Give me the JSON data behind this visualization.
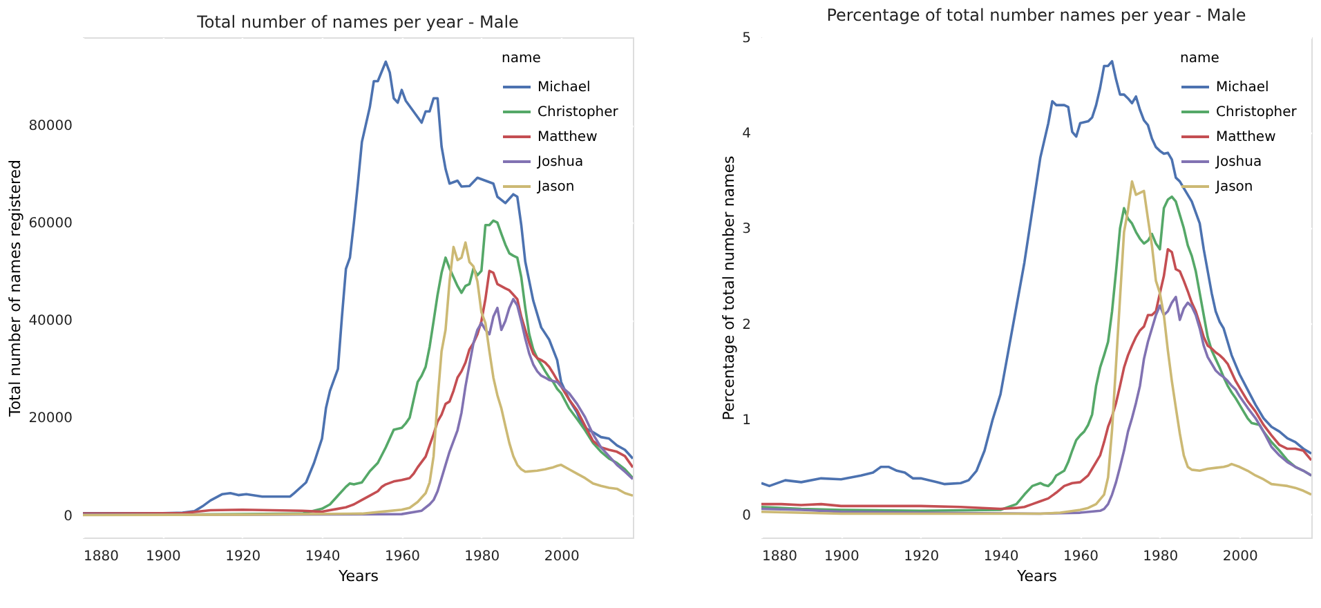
{
  "chart_data": [
    {
      "type": "line",
      "title": "Total number of names per year - Male",
      "xlabel": "Years",
      "ylabel": "Total number of names registered",
      "legend_title": "name",
      "legend": "top right",
      "grid": true,
      "marker": "none",
      "line_style": "solid",
      "xlim": [
        1880,
        2018
      ],
      "xticks": [
        1880,
        1900,
        1920,
        1940,
        1960,
        1980,
        2000
      ],
      "ylim": [
        -4600,
        98000
      ],
      "yticks": [
        0,
        20000,
        40000,
        60000,
        80000
      ],
      "series": [
        {
          "name": "Michael",
          "color": "#4c72b0",
          "x": [
            1880,
            1890,
            1900,
            1905,
            1908,
            1910,
            1912,
            1915,
            1917,
            1919,
            1921,
            1925,
            1932,
            1933,
            1936,
            1938,
            1940,
            1941,
            1942,
            1944,
            1945,
            1946,
            1947,
            1948,
            1949,
            1950,
            1952,
            1953,
            1954,
            1956,
            1957,
            1958,
            1959,
            1960,
            1961,
            1965,
            1966,
            1967,
            1968,
            1969,
            1970,
            1971,
            1972,
            1974,
            1975,
            1977,
            1979,
            1983,
            1984,
            1986,
            1988,
            1989,
            1990,
            1991,
            1993,
            1995,
            1997,
            1999,
            2000,
            2002,
            2004,
            2005,
            2006,
            2008,
            2010,
            2012,
            2014,
            2016,
            2018
          ],
          "values": [
            400,
            400,
            400,
            500,
            800,
            1800,
            3000,
            4300,
            4500,
            4100,
            4300,
            3800,
            3800,
            4500,
            6700,
            10700,
            15700,
            22000,
            25500,
            30000,
            40700,
            50500,
            52800,
            60000,
            68000,
            76500,
            83700,
            89000,
            89000,
            93000,
            90800,
            85500,
            84600,
            87200,
            85000,
            80500,
            82800,
            82800,
            85500,
            85500,
            75600,
            71000,
            68000,
            68600,
            67400,
            67500,
            69200,
            68000,
            65300,
            64000,
            65800,
            65300,
            59500,
            52000,
            44000,
            38500,
            36000,
            31800,
            27300,
            23700,
            21000,
            19000,
            17900,
            17000,
            16000,
            15700,
            14300,
            13400,
            11600
          ]
        },
        {
          "name": "Christopher",
          "color": "#55a868",
          "x": [
            1880,
            1900,
            1920,
            1935,
            1940,
            1942,
            1944,
            1946,
            1947,
            1948,
            1950,
            1952,
            1954,
            1956,
            1957,
            1958,
            1960,
            1961,
            1962,
            1963,
            1964,
            1965,
            1966,
            1967,
            1968,
            1969,
            1970,
            1971,
            1972,
            1973,
            1974,
            1975,
            1976,
            1977,
            1978,
            1979,
            1980,
            1981,
            1982,
            1983,
            1984,
            1985,
            1986,
            1987,
            1988,
            1989,
            1990,
            1991,
            1992,
            1993,
            1994,
            1995,
            1996,
            1997,
            1998,
            1999,
            2000,
            2002,
            2004,
            2006,
            2008,
            2010,
            2012,
            2014,
            2016,
            2018
          ],
          "values": [
            100,
            100,
            200,
            300,
            1300,
            2200,
            4000,
            5800,
            6500,
            6300,
            6700,
            9000,
            10700,
            13900,
            15700,
            17500,
            17900,
            18800,
            20000,
            23700,
            27300,
            28600,
            30400,
            34500,
            39800,
            45200,
            49700,
            52800,
            50600,
            48800,
            47000,
            45600,
            47000,
            47400,
            50600,
            49200,
            50100,
            59500,
            59500,
            60400,
            60000,
            57700,
            55500,
            53700,
            53200,
            52800,
            48800,
            42500,
            37100,
            34000,
            32200,
            30900,
            29500,
            28200,
            27300,
            25900,
            25000,
            21900,
            19700,
            17400,
            14800,
            13000,
            11600,
            10700,
            9400,
            7600
          ]
        },
        {
          "name": "Matthew",
          "color": "#c44e52",
          "x": [
            1880,
            1905,
            1912,
            1920,
            1935,
            1940,
            1944,
            1946,
            1948,
            1950,
            1952,
            1954,
            1955,
            1956,
            1958,
            1960,
            1962,
            1963,
            1964,
            1966,
            1967,
            1968,
            1969,
            1970,
            1971,
            1972,
            1973,
            1974,
            1975,
            1976,
            1977,
            1978,
            1979,
            1980,
            1981,
            1982,
            1983,
            1984,
            1986,
            1987,
            1988,
            1989,
            1990,
            1991,
            1992,
            1993,
            1994,
            1995,
            1996,
            1997,
            1998,
            1999,
            2000,
            2002,
            2004,
            2006,
            2008,
            2010,
            2012,
            2014,
            2016,
            2018
          ],
          "values": [
            300,
            400,
            1000,
            1100,
            900,
            700,
            1300,
            1600,
            2200,
            3100,
            4000,
            4900,
            5800,
            6300,
            6900,
            7200,
            7600,
            8500,
            9800,
            12000,
            14300,
            16600,
            19200,
            20600,
            22800,
            23300,
            25500,
            28200,
            29500,
            31300,
            34000,
            35300,
            37100,
            39800,
            44300,
            50100,
            49700,
            47400,
            46500,
            46100,
            45200,
            44300,
            40700,
            38000,
            35300,
            33100,
            32200,
            31800,
            31300,
            30400,
            29100,
            27700,
            26400,
            23700,
            21500,
            18300,
            15200,
            13900,
            13400,
            13000,
            12100,
            9800
          ]
        },
        {
          "name": "Joshua",
          "color": "#8172b2",
          "x": [
            1880,
            1920,
            1960,
            1965,
            1967,
            1968,
            1969,
            1970,
            1971,
            1972,
            1973,
            1974,
            1975,
            1976,
            1977,
            1978,
            1979,
            1980,
            1981,
            1982,
            1983,
            1984,
            1985,
            1986,
            1987,
            1988,
            1989,
            1990,
            1991,
            1992,
            1993,
            1994,
            1995,
            1996,
            1997,
            1999,
            2000,
            2002,
            2004,
            2006,
            2008,
            2010,
            2012,
            2014,
            2016,
            2018
          ],
          "values": [
            100,
            100,
            200,
            900,
            2200,
            3100,
            4900,
            7600,
            10300,
            13000,
            15200,
            17400,
            21000,
            26400,
            30900,
            35300,
            38000,
            39400,
            38000,
            37100,
            40700,
            42500,
            38000,
            39800,
            42500,
            44300,
            43000,
            39800,
            36200,
            33100,
            30900,
            29500,
            28600,
            28200,
            27700,
            27300,
            26400,
            25000,
            22800,
            20100,
            16600,
            13900,
            12100,
            10300,
            8900,
            7400
          ]
        },
        {
          "name": "Jason",
          "color": "#ccb974",
          "x": [
            1880,
            1920,
            1950,
            1955,
            1960,
            1962,
            1964,
            1966,
            1967,
            1968,
            1969,
            1970,
            1971,
            1972,
            1973,
            1974,
            1975,
            1976,
            1977,
            1978,
            1979,
            1980,
            1981,
            1982,
            1983,
            1984,
            1985,
            1986,
            1987,
            1988,
            1989,
            1990,
            1991,
            1994,
            1996,
            1997,
            1998,
            1999,
            2000,
            2002,
            2004,
            2006,
            2008,
            2010,
            2012,
            2014,
            2016,
            2018
          ],
          "values": [
            0,
            100,
            300,
            700,
            1100,
            1500,
            2700,
            4500,
            6700,
            12100,
            23700,
            33600,
            38000,
            47900,
            55000,
            52300,
            52800,
            55900,
            51900,
            51000,
            47900,
            41600,
            39400,
            33600,
            28200,
            24600,
            21900,
            18300,
            14800,
            12100,
            10300,
            9400,
            8900,
            9100,
            9400,
            9600,
            9800,
            10100,
            10300,
            9400,
            8500,
            7600,
            6500,
            6000,
            5600,
            5400,
            4500,
            4000
          ]
        }
      ]
    },
    {
      "type": "line",
      "title": "Percentage of total number names per year - Male",
      "xlabel": "Years",
      "ylabel": "Percentage of total number names",
      "legend_title": "name",
      "legend": "top right",
      "grid": true,
      "marker": "none",
      "line_style": "solid",
      "xlim": [
        1880,
        2018
      ],
      "xticks": [
        1880,
        1900,
        1920,
        1940,
        1960,
        1980,
        2000
      ],
      "ylim": [
        -0.24,
        5
      ],
      "yticks": [
        0,
        1,
        2,
        3,
        4,
        5
      ],
      "series": [
        {
          "name": "Michael",
          "color": "#4c72b0",
          "x": [
            1880,
            1882,
            1886,
            1890,
            1895,
            1900,
            1905,
            1908,
            1910,
            1912,
            1914,
            1916,
            1918,
            1920,
            1924,
            1926,
            1930,
            1932,
            1934,
            1936,
            1938,
            1940,
            1942,
            1944,
            1946,
            1948,
            1950,
            1952,
            1953,
            1954,
            1956,
            1957,
            1958,
            1959,
            1960,
            1962,
            1963,
            1964,
            1965,
            1966,
            1967,
            1968,
            1969,
            1970,
            1971,
            1972,
            1973,
            1974,
            1975,
            1976,
            1977,
            1978,
            1979,
            1980,
            1981,
            1982,
            1983,
            1984,
            1985,
            1986,
            1988,
            1990,
            1991,
            1992,
            1993,
            1994,
            1995,
            1996,
            1997,
            1998,
            2000,
            2002,
            2004,
            2006,
            2008,
            2010,
            2012,
            2014,
            2016,
            2018
          ],
          "values": [
            0.33,
            0.3,
            0.36,
            0.34,
            0.38,
            0.37,
            0.41,
            0.44,
            0.5,
            0.5,
            0.46,
            0.44,
            0.38,
            0.38,
            0.34,
            0.32,
            0.33,
            0.36,
            0.46,
            0.67,
            0.99,
            1.26,
            1.72,
            2.18,
            2.64,
            3.19,
            3.74,
            4.1,
            4.33,
            4.29,
            4.29,
            4.27,
            4.01,
            3.96,
            4.1,
            4.12,
            4.16,
            4.29,
            4.47,
            4.7,
            4.7,
            4.75,
            4.56,
            4.4,
            4.4,
            4.36,
            4.31,
            4.38,
            4.24,
            4.13,
            4.08,
            3.94,
            3.85,
            3.81,
            3.78,
            3.79,
            3.72,
            3.53,
            3.49,
            3.42,
            3.28,
            3.05,
            2.78,
            2.55,
            2.32,
            2.13,
            2.02,
            1.95,
            1.81,
            1.67,
            1.47,
            1.31,
            1.15,
            1.01,
            0.92,
            0.87,
            0.8,
            0.76,
            0.69,
            0.64
          ]
        },
        {
          "name": "Christopher",
          "color": "#55a868",
          "x": [
            1880,
            1890,
            1900,
            1920,
            1940,
            1944,
            1946,
            1948,
            1950,
            1951,
            1952,
            1953,
            1954,
            1956,
            1957,
            1958,
            1959,
            1960,
            1961,
            1962,
            1963,
            1964,
            1965,
            1966,
            1967,
            1968,
            1969,
            1970,
            1971,
            1972,
            1973,
            1974,
            1975,
            1976,
            1977,
            1978,
            1979,
            1980,
            1981,
            1982,
            1983,
            1984,
            1985,
            1986,
            1987,
            1988,
            1989,
            1990,
            1991,
            1992,
            1993,
            1994,
            1995,
            1996,
            1997,
            1998,
            1999,
            2000,
            2001,
            2002,
            2003,
            2005,
            2006,
            2008,
            2010,
            2012,
            2014,
            2016,
            2018
          ],
          "values": [
            0.08,
            0.06,
            0.05,
            0.04,
            0.05,
            0.11,
            0.21,
            0.3,
            0.33,
            0.31,
            0.3,
            0.34,
            0.41,
            0.46,
            0.55,
            0.67,
            0.78,
            0.83,
            0.87,
            0.94,
            1.05,
            1.35,
            1.54,
            1.67,
            1.81,
            2.13,
            2.55,
            3.0,
            3.21,
            3.1,
            3.05,
            2.96,
            2.89,
            2.84,
            2.87,
            2.94,
            2.84,
            2.78,
            3.21,
            3.3,
            3.33,
            3.28,
            3.14,
            3.0,
            2.82,
            2.71,
            2.55,
            2.32,
            2.09,
            1.86,
            1.72,
            1.63,
            1.54,
            1.44,
            1.35,
            1.28,
            1.22,
            1.15,
            1.08,
            1.01,
            0.96,
            0.94,
            0.87,
            0.76,
            0.67,
            0.57,
            0.5,
            0.46,
            0.41
          ]
        },
        {
          "name": "Matthew",
          "color": "#c44e52",
          "x": [
            1880,
            1885,
            1890,
            1895,
            1900,
            1910,
            1920,
            1930,
            1940,
            1944,
            1946,
            1948,
            1950,
            1952,
            1954,
            1956,
            1958,
            1960,
            1962,
            1963,
            1964,
            1965,
            1966,
            1967,
            1968,
            1969,
            1970,
            1971,
            1972,
            1973,
            1974,
            1975,
            1976,
            1977,
            1978,
            1979,
            1980,
            1981,
            1982,
            1983,
            1984,
            1985,
            1986,
            1987,
            1988,
            1989,
            1990,
            1991,
            1992,
            1993,
            1994,
            1995,
            1996,
            1997,
            1998,
            1999,
            2000,
            2002,
            2004,
            2006,
            2008,
            2010,
            2012,
            2014,
            2016,
            2018
          ],
          "values": [
            0.11,
            0.11,
            0.1,
            0.11,
            0.09,
            0.09,
            0.09,
            0.08,
            0.06,
            0.07,
            0.08,
            0.11,
            0.14,
            0.17,
            0.23,
            0.3,
            0.33,
            0.34,
            0.41,
            0.48,
            0.55,
            0.62,
            0.76,
            0.92,
            1.03,
            1.17,
            1.35,
            1.54,
            1.67,
            1.77,
            1.86,
            1.93,
            1.97,
            2.09,
            2.09,
            2.13,
            2.32,
            2.5,
            2.78,
            2.75,
            2.57,
            2.55,
            2.45,
            2.34,
            2.22,
            2.13,
            2.0,
            1.86,
            1.77,
            1.74,
            1.7,
            1.67,
            1.63,
            1.58,
            1.49,
            1.4,
            1.33,
            1.19,
            1.08,
            0.94,
            0.83,
            0.73,
            0.69,
            0.69,
            0.67,
            0.57
          ]
        },
        {
          "name": "Joshua",
          "color": "#8172b2",
          "x": [
            1880,
            1890,
            1900,
            1920,
            1950,
            1960,
            1965,
            1966,
            1967,
            1968,
            1969,
            1970,
            1971,
            1972,
            1973,
            1974,
            1975,
            1976,
            1977,
            1978,
            1979,
            1980,
            1981,
            1982,
            1983,
            1984,
            1985,
            1986,
            1987,
            1988,
            1989,
            1990,
            1991,
            1992,
            1993,
            1994,
            1995,
            1996,
            1997,
            1998,
            1999,
            2000,
            2002,
            2004,
            2006,
            2008,
            2010,
            2012,
            2014,
            2016,
            2018
          ],
          "values": [
            0.06,
            0.05,
            0.03,
            0.02,
            0.01,
            0.02,
            0.04,
            0.06,
            0.11,
            0.21,
            0.34,
            0.5,
            0.67,
            0.87,
            1.01,
            1.17,
            1.35,
            1.63,
            1.81,
            1.95,
            2.09,
            2.19,
            2.09,
            2.13,
            2.22,
            2.28,
            2.04,
            2.16,
            2.22,
            2.18,
            2.09,
            1.95,
            1.77,
            1.65,
            1.58,
            1.51,
            1.47,
            1.44,
            1.4,
            1.35,
            1.31,
            1.24,
            1.12,
            1.01,
            0.87,
            0.71,
            0.62,
            0.55,
            0.5,
            0.46,
            0.41
          ]
        },
        {
          "name": "Jason",
          "color": "#ccb974",
          "x": [
            1880,
            1900,
            1950,
            1955,
            1960,
            1962,
            1964,
            1966,
            1967,
            1968,
            1969,
            1970,
            1971,
            1972,
            1973,
            1974,
            1975,
            1976,
            1977,
            1978,
            1979,
            1980,
            1981,
            1982,
            1983,
            1984,
            1985,
            1986,
            1987,
            1988,
            1990,
            1992,
            1994,
            1996,
            1997,
            1998,
            2000,
            2002,
            2004,
            2006,
            2008,
            2010,
            2012,
            2014,
            2016,
            2018
          ],
          "values": [
            0.03,
            0.01,
            0.01,
            0.02,
            0.05,
            0.07,
            0.11,
            0.21,
            0.39,
            0.89,
            1.58,
            2.27,
            2.96,
            3.19,
            3.49,
            3.35,
            3.37,
            3.39,
            3.1,
            2.82,
            2.45,
            2.32,
            2.09,
            1.72,
            1.4,
            1.12,
            0.85,
            0.62,
            0.5,
            0.47,
            0.46,
            0.48,
            0.49,
            0.5,
            0.51,
            0.53,
            0.5,
            0.46,
            0.41,
            0.37,
            0.32,
            0.31,
            0.3,
            0.28,
            0.25,
            0.21
          ]
        }
      ]
    }
  ]
}
